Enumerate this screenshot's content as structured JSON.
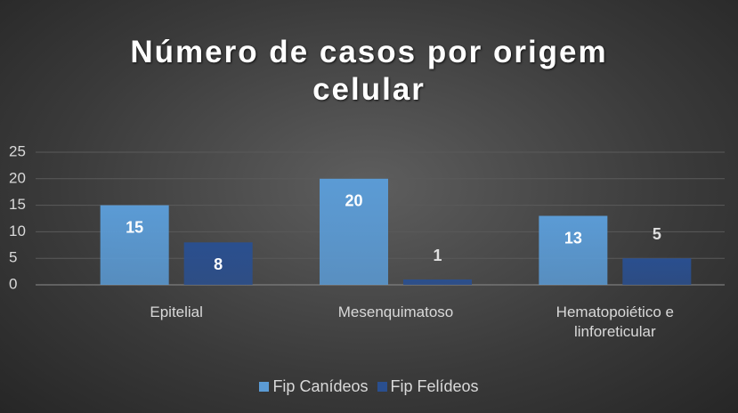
{
  "chart_data": {
    "type": "bar",
    "title": "Número de casos por origem celular",
    "categories": [
      "Epitelial",
      "Mesenquimatoso",
      "Hematopoiético e linforeticular"
    ],
    "series": [
      {
        "name": "Fip Canídeos",
        "color": "#5b9bd5",
        "values": [
          15,
          20,
          13
        ]
      },
      {
        "name": "Fip Felídeos",
        "color": "#2a4f8f",
        "values": [
          8,
          1,
          5
        ]
      }
    ],
    "ylim": [
      0,
      25
    ],
    "yticks": [
      0,
      5,
      10,
      15,
      20,
      25
    ],
    "grid": true,
    "legend": "bottom"
  }
}
